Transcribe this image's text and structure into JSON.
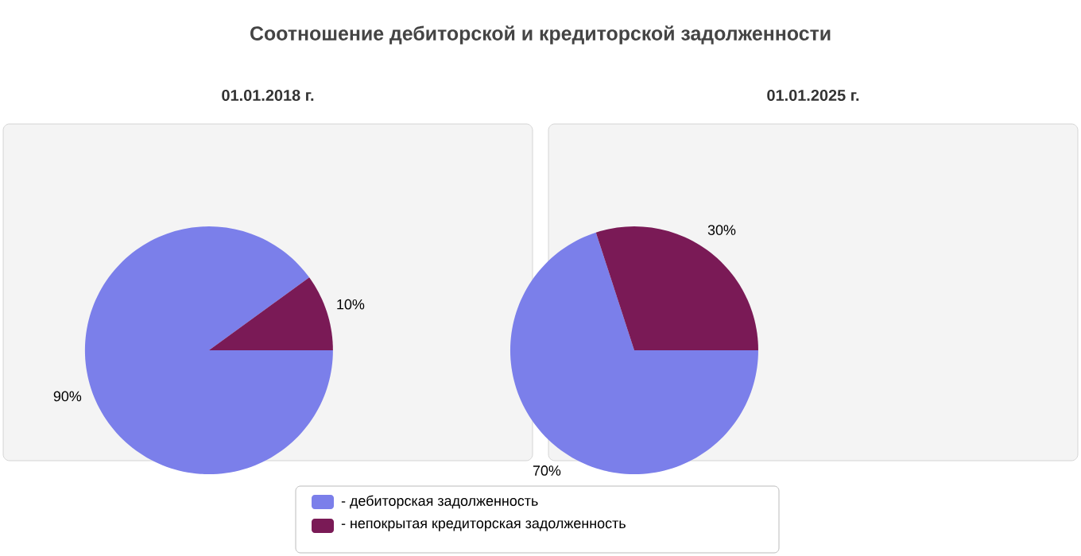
{
  "chart_data": [
    {
      "type": "pie",
      "title": "Соотношение дебиторской и кредиторской задолженности",
      "subtitle": "01.01.2018 г.",
      "categories": [
        "- дебиторская задолженность",
        "- непокрытая кредиторская задолженность"
      ],
      "values": [
        90,
        10
      ],
      "colors": [
        "#7b7fea",
        "#7a1a56"
      ],
      "value_labels": [
        "90%",
        "10%"
      ],
      "legend": "bottom"
    },
    {
      "type": "pie",
      "subtitle": "01.01.2025 г.",
      "categories": [
        null,
        null
      ],
      "values": [
        70,
        30
      ],
      "colors": [
        "#7b7fea",
        "#7a1a56"
      ],
      "value_labels": [
        "70%",
        "30%"
      ]
    }
  ]
}
